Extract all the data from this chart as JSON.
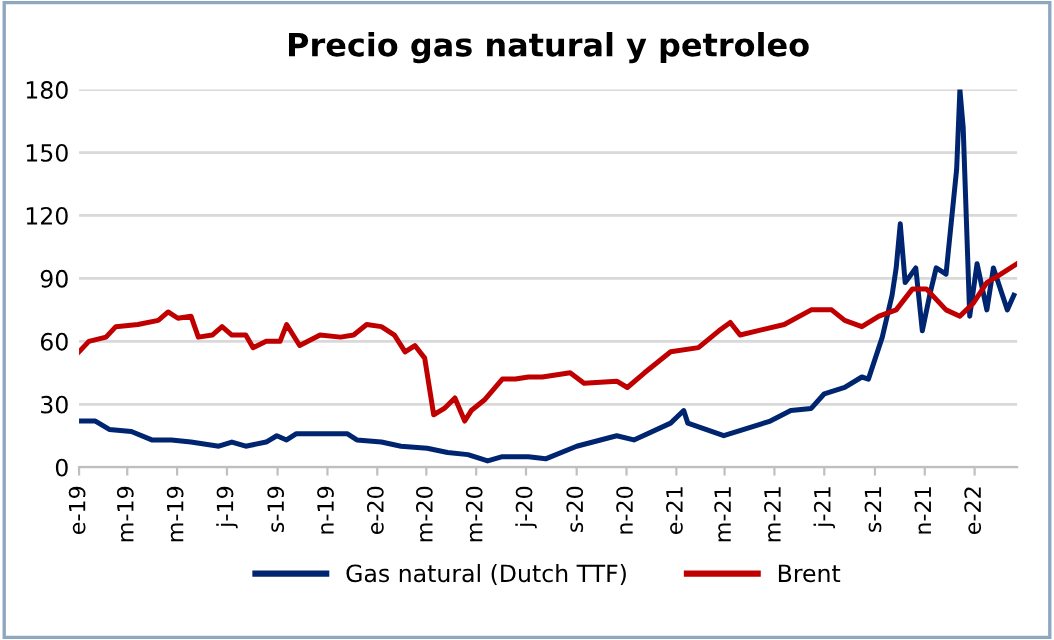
{
  "chart_data": {
    "type": "line",
    "title": "Precio gas natural y petroleo",
    "xlim": [
      "2019-01-01",
      "2022-02-22"
    ],
    "xticks": [
      {
        "value": "2019-01-01",
        "label": "e-19"
      },
      {
        "value": "2019-03-01",
        "label": "m-19"
      },
      {
        "value": "2019-05-01",
        "label": "m-19"
      },
      {
        "value": "2019-07-01",
        "label": "j-19"
      },
      {
        "value": "2019-09-01",
        "label": "s-19"
      },
      {
        "value": "2019-11-01",
        "label": "n-19"
      },
      {
        "value": "2020-01-01",
        "label": "e-20"
      },
      {
        "value": "2020-03-01",
        "label": "m-20"
      },
      {
        "value": "2020-05-01",
        "label": "m-20"
      },
      {
        "value": "2020-07-01",
        "label": "j-20"
      },
      {
        "value": "2020-09-01",
        "label": "s-20"
      },
      {
        "value": "2020-11-01",
        "label": "n-20"
      },
      {
        "value": "2021-01-01",
        "label": "e-21"
      },
      {
        "value": "2021-03-01",
        "label": "m-21"
      },
      {
        "value": "2021-05-01",
        "label": "m-21"
      },
      {
        "value": "2021-07-01",
        "label": "j-21"
      },
      {
        "value": "2021-09-01",
        "label": "s-21"
      },
      {
        "value": "2021-11-01",
        "label": "n-21"
      },
      {
        "value": "2022-01-01",
        "label": "e-22"
      }
    ],
    "ylim": [
      0,
      180
    ],
    "yticks": [
      0,
      30,
      60,
      90,
      120,
      150,
      180
    ],
    "grid": "y",
    "legend": "bottom",
    "line_style": "solid",
    "series": [
      {
        "name": "Gas natural (Dutch TTF)",
        "color": "#002570",
        "x": [
          "2019-01-01",
          "2019-01-21",
          "2019-02-07",
          "2019-03-06",
          "2019-03-31",
          "2019-04-24",
          "2019-05-18",
          "2019-06-21",
          "2019-07-07",
          "2019-07-24",
          "2019-08-18",
          "2019-08-31",
          "2019-09-12",
          "2019-09-24",
          "2019-10-23",
          "2019-11-25",
          "2019-12-07",
          "2020-01-06",
          "2020-01-30",
          "2020-03-02",
          "2020-03-27",
          "2020-04-21",
          "2020-05-15",
          "2020-06-02",
          "2020-07-04",
          "2020-07-25",
          "2020-09-01",
          "2020-10-20",
          "2020-11-10",
          "2020-12-25",
          "2021-01-10",
          "2021-01-15",
          "2021-02-28",
          "2021-04-26",
          "2021-05-21",
          "2021-06-15",
          "2021-07-01",
          "2021-07-26",
          "2021-08-16",
          "2021-08-24",
          "2021-09-10",
          "2021-09-22",
          "2021-09-27",
          "2021-10-02",
          "2021-10-08",
          "2021-10-21",
          "2021-10-29",
          "2021-11-07",
          "2021-11-15",
          "2021-11-27",
          "2021-12-10",
          "2021-12-14",
          "2021-12-18",
          "2021-12-26",
          "2022-01-04",
          "2022-01-16",
          "2022-01-24",
          "2022-02-10",
          "2022-02-18"
        ],
        "values": [
          22,
          22,
          18,
          17,
          13,
          13,
          12,
          10,
          12,
          10,
          12,
          15,
          13,
          16,
          16,
          16,
          13,
          12,
          10,
          9,
          7,
          6,
          3,
          5,
          5,
          4,
          10,
          15,
          13,
          21,
          27,
          21,
          15,
          22,
          27,
          28,
          35,
          38,
          43,
          42,
          62,
          82,
          95,
          116,
          88,
          95,
          65,
          82,
          95,
          92,
          142,
          180,
          162,
          72,
          97,
          75,
          95,
          75,
          82
        ]
      },
      {
        "name": "Brent",
        "color": "#c00000",
        "x": [
          "2019-01-01",
          "2019-01-13",
          "2019-02-03",
          "2019-02-15",
          "2019-03-14",
          "2019-04-08",
          "2019-04-20",
          "2019-05-02",
          "2019-05-18",
          "2019-05-27",
          "2019-06-13",
          "2019-06-25",
          "2019-07-07",
          "2019-07-24",
          "2019-08-02",
          "2019-08-18",
          "2019-09-04",
          "2019-09-12",
          "2019-09-28",
          "2019-10-23",
          "2019-11-17",
          "2019-12-03",
          "2019-12-19",
          "2020-01-06",
          "2020-01-22",
          "2020-02-04",
          "2020-02-16",
          "2020-02-28",
          "2020-03-10",
          "2020-03-23",
          "2020-04-05",
          "2020-04-17",
          "2020-04-25",
          "2020-05-11",
          "2020-06-02",
          "2020-06-18",
          "2020-07-04",
          "2020-07-21",
          "2020-08-24",
          "2020-09-10",
          "2020-10-20",
          "2020-11-02",
          "2020-11-23",
          "2020-12-25",
          "2021-01-28",
          "2021-02-22",
          "2021-03-08",
          "2021-03-20",
          "2021-04-10",
          "2021-05-13",
          "2021-06-15",
          "2021-07-10",
          "2021-07-26",
          "2021-08-16",
          "2021-09-06",
          "2021-09-27",
          "2021-10-17",
          "2021-11-03",
          "2021-11-27",
          "2021-12-14",
          "2021-12-30",
          "2022-01-16",
          "2022-02-02",
          "2022-02-22"
        ],
        "values": [
          55,
          60,
          62,
          67,
          68,
          70,
          74,
          71,
          72,
          62,
          63,
          67,
          63,
          63,
          57,
          60,
          60,
          68,
          58,
          63,
          62,
          63,
          68,
          67,
          63,
          55,
          58,
          52,
          25,
          28,
          33,
          22,
          27,
          32,
          42,
          42,
          43,
          43,
          45,
          40,
          41,
          38,
          45,
          55,
          57,
          65,
          69,
          63,
          65,
          68,
          75,
          75,
          70,
          67,
          72,
          75,
          85,
          85,
          75,
          72,
          78,
          88,
          92,
          97
        ]
      }
    ]
  }
}
